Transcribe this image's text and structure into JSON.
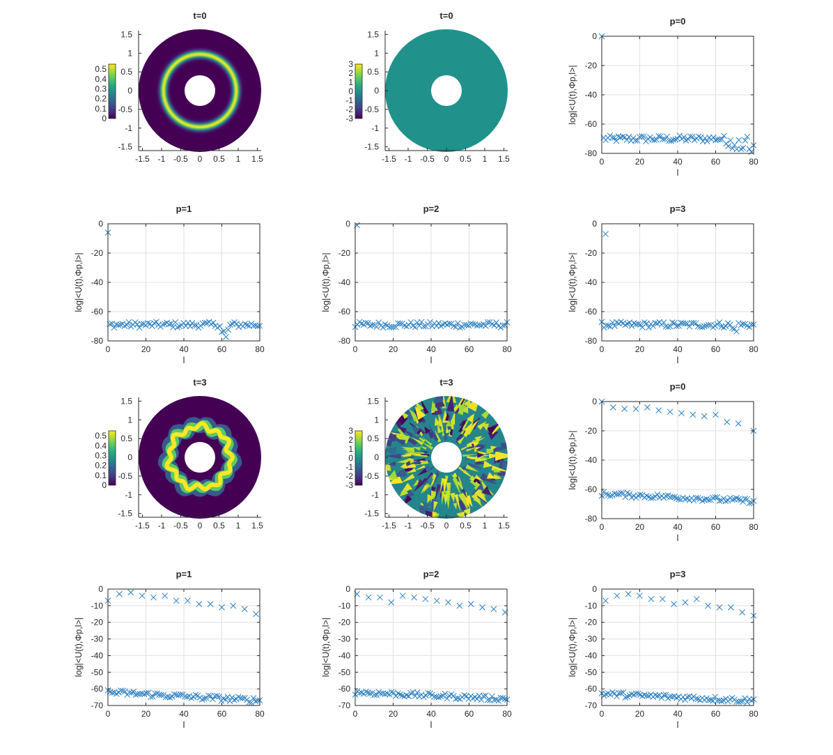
{
  "colors": {
    "marker": "#2a7fc1",
    "axis": "#262626",
    "grid": "#e0e0e0",
    "phase_flat": "#21918c",
    "viridis": [
      "#440154",
      "#472d7b",
      "#3b528b",
      "#2c728e",
      "#21918c",
      "#28ae80",
      "#5ec962",
      "#addc30",
      "#fde725"
    ]
  },
  "chart_data": [
    {
      "type": "heatmap",
      "title": "t=0",
      "xlim": [
        -1.6,
        1.6
      ],
      "ylim": [
        -1.6,
        1.6
      ],
      "xticks": [
        "-1.5",
        "-1",
        "-0.5",
        "0",
        "0.5",
        "1",
        "1.5"
      ],
      "yticks": [
        "1.5",
        "1",
        "0.5",
        "0",
        "-0.5",
        "-1",
        "-1.5"
      ],
      "colorbar": {
        "min": 0,
        "max": 0.55,
        "ticks": [
          "0.5",
          "0.4",
          "0.3",
          "0.2",
          "0.1",
          "0"
        ]
      },
      "annulus": {
        "inner_radius": 0.4,
        "outer_radius": 1.6,
        "ring_peak_radius": 0.95
      }
    },
    {
      "type": "heatmap",
      "title": "t=0",
      "xlim": [
        -1.6,
        1.6
      ],
      "ylim": [
        -1.6,
        1.6
      ],
      "xticks": [
        "-1.5",
        "-1",
        "-0.5",
        "0",
        "0.5",
        "1",
        "1.5"
      ],
      "yticks": [
        "1.5",
        "1",
        "0.5",
        "0",
        "-0.5",
        "-1",
        "-1.5"
      ],
      "colorbar": {
        "min": -3,
        "max": 3,
        "ticks": [
          "3",
          "2",
          "1",
          "0",
          "-1",
          "-2",
          "-3"
        ]
      },
      "annulus": {
        "inner_radius": 0.4,
        "outer_radius": 1.6
      }
    },
    {
      "type": "scatter",
      "title": "p=0",
      "xlabel": "l",
      "ylabel": "log|<U(t),Φp,l>|",
      "xlim": [
        0,
        80
      ],
      "ylim": [
        -80,
        0
      ],
      "xticks": [
        "0",
        "20",
        "40",
        "60",
        "80"
      ],
      "yticks": [
        "0",
        "-20",
        "-40",
        "-60",
        "-80"
      ],
      "points": [
        [
          0,
          0
        ]
      ],
      "noise_band": {
        "x_start": 1,
        "x_end": 80,
        "count": 72,
        "center": -70,
        "spread": 2.2,
        "tail_drop": [
          [
            66,
            -3
          ],
          [
            70,
            -5
          ],
          [
            74,
            -6
          ],
          [
            78,
            -7
          ],
          [
            80,
            -6
          ]
        ]
      }
    },
    {
      "type": "scatter",
      "title": "p=1",
      "xlabel": "l",
      "ylabel": "log|<U(t),Φp,l>|",
      "xlim": [
        0,
        80
      ],
      "ylim": [
        -80,
        0
      ],
      "xticks": [
        "0",
        "20",
        "40",
        "60",
        "80"
      ],
      "yticks": [
        "0",
        "-20",
        "-40",
        "-60",
        "-80"
      ],
      "points": [
        [
          0,
          -6
        ]
      ],
      "noise_band": {
        "x_start": 1,
        "x_end": 80,
        "count": 72,
        "center": -69,
        "spread": 2.0,
        "tail_drop": [
          [
            61,
            -5
          ],
          [
            63,
            -4
          ]
        ]
      }
    },
    {
      "type": "scatter",
      "title": "p=2",
      "xlabel": "l",
      "ylabel": "log|<U(t),Φp,l>|",
      "xlim": [
        0,
        80
      ],
      "ylim": [
        -80,
        0
      ],
      "xticks": [
        "0",
        "20",
        "40",
        "60",
        "80"
      ],
      "yticks": [
        "0",
        "-20",
        "-40",
        "-60",
        "-80"
      ],
      "points": [
        [
          1,
          -1
        ]
      ],
      "noise_band": {
        "x_start": 0,
        "x_end": 80,
        "count": 72,
        "center": -69,
        "spread": 2.0,
        "tail_drop": []
      }
    },
    {
      "type": "scatter",
      "title": "p=3",
      "xlabel": "l",
      "ylabel": "log|<U(t),Φp,l>|",
      "xlim": [
        0,
        80
      ],
      "ylim": [
        -80,
        0
      ],
      "xticks": [
        "0",
        "20",
        "40",
        "60",
        "80"
      ],
      "yticks": [
        "0",
        "-20",
        "-40",
        "-60",
        "-80"
      ],
      "points": [
        [
          2,
          -7
        ]
      ],
      "noise_band": {
        "x_start": 0,
        "x_end": 80,
        "count": 72,
        "center": -69,
        "spread": 2.0,
        "tail_drop": [
          [
            70,
            -3
          ]
        ]
      }
    },
    {
      "type": "heatmap",
      "title": "t=3",
      "xlim": [
        -1.6,
        1.6
      ],
      "ylim": [
        -1.6,
        1.6
      ],
      "xticks": [
        "-1.5",
        "-1",
        "-0.5",
        "0",
        "0.5",
        "1",
        "1.5"
      ],
      "yticks": [
        "1.5",
        "1",
        "0.5",
        "0",
        "-0.5",
        "-1",
        "-1.5"
      ],
      "colorbar": {
        "min": 0,
        "max": 0.55,
        "ticks": [
          "0.5",
          "0.4",
          "0.3",
          "0.2",
          "0.1",
          "0"
        ]
      },
      "annulus": {
        "inner_radius": 0.4,
        "outer_radius": 1.6,
        "ring_peak_radius": 0.8
      }
    },
    {
      "type": "heatmap",
      "title": "t=3",
      "xlim": [
        -1.6,
        1.6
      ],
      "ylim": [
        -1.6,
        1.6
      ],
      "xticks": [
        "-1.5",
        "-1",
        "-0.5",
        "0",
        "0.5",
        "1",
        "1.5"
      ],
      "yticks": [
        "1.5",
        "1",
        "0.5",
        "0",
        "-0.5",
        "-1",
        "-1.5"
      ],
      "colorbar": {
        "min": -3,
        "max": 3,
        "ticks": [
          "3",
          "2",
          "1",
          "0",
          "-1",
          "-2",
          "-3"
        ]
      },
      "annulus": {
        "inner_radius": 0.4,
        "outer_radius": 1.6
      }
    },
    {
      "type": "scatter",
      "title": "p=0",
      "xlabel": "l",
      "ylabel": "log|<U(t),Φp,l>|",
      "xlim": [
        0,
        80
      ],
      "ylim": [
        -80,
        0
      ],
      "xticks": [
        "0",
        "20",
        "40",
        "60",
        "80"
      ],
      "yticks": [
        "0",
        "-20",
        "-40",
        "-60",
        "-80"
      ],
      "points": [
        [
          0,
          0
        ],
        [
          6,
          -4
        ],
        [
          12,
          -5
        ],
        [
          18,
          -5
        ],
        [
          24,
          -4
        ],
        [
          30,
          -6
        ],
        [
          36,
          -7
        ],
        [
          42,
          -8
        ],
        [
          48,
          -9
        ],
        [
          54,
          -10
        ],
        [
          60,
          -9
        ],
        [
          66,
          -14
        ],
        [
          72,
          -15
        ],
        [
          80,
          -20
        ]
      ],
      "noise_band": {
        "x_start": 0,
        "x_end": 80,
        "count": 72,
        "center": -63,
        "spread": 1.6,
        "trend": -5
      }
    },
    {
      "type": "scatter",
      "title": "p=1",
      "xlabel": "l",
      "ylabel": "log|<U(t),Φp,l>|",
      "xlim": [
        0,
        80
      ],
      "ylim": [
        -70,
        0
      ],
      "xticks": [
        "0",
        "20",
        "40",
        "60",
        "80"
      ],
      "yticks": [
        "0",
        "-10",
        "-20",
        "-30",
        "-40",
        "-50",
        "-60",
        "-70"
      ],
      "points": [
        [
          0,
          -7
        ],
        [
          6,
          -3
        ],
        [
          12,
          -2
        ],
        [
          18,
          -4
        ],
        [
          24,
          -5
        ],
        [
          30,
          -4
        ],
        [
          36,
          -7
        ],
        [
          42,
          -7
        ],
        [
          48,
          -9
        ],
        [
          54,
          -9
        ],
        [
          60,
          -11
        ],
        [
          66,
          -10
        ],
        [
          72,
          -12
        ],
        [
          78,
          -15
        ]
      ],
      "noise_band": {
        "x_start": 0,
        "x_end": 80,
        "count": 72,
        "center": -62,
        "spread": 1.6,
        "trend": -5
      }
    },
    {
      "type": "scatter",
      "title": "p=2",
      "xlabel": "l",
      "ylabel": "log|<U(t),Φp,l>|",
      "xlim": [
        0,
        80
      ],
      "ylim": [
        -70,
        0
      ],
      "xticks": [
        "0",
        "20",
        "40",
        "60",
        "80"
      ],
      "yticks": [
        "0",
        "-10",
        "-20",
        "-30",
        "-40",
        "-50",
        "-60",
        "-70"
      ],
      "points": [
        [
          1,
          -3
        ],
        [
          7,
          -5
        ],
        [
          13,
          -5
        ],
        [
          19,
          -8
        ],
        [
          25,
          -4
        ],
        [
          31,
          -5
        ],
        [
          37,
          -6
        ],
        [
          43,
          -7
        ],
        [
          49,
          -8
        ],
        [
          55,
          -10
        ],
        [
          61,
          -9
        ],
        [
          67,
          -11
        ],
        [
          73,
          -12
        ],
        [
          79,
          -14
        ]
      ],
      "noise_band": {
        "x_start": 0,
        "x_end": 80,
        "count": 72,
        "center": -62,
        "spread": 1.5,
        "trend": -4
      }
    },
    {
      "type": "scatter",
      "title": "p=3",
      "xlabel": "l",
      "ylabel": "log|<U(t),Φp,l>|",
      "xlim": [
        0,
        80
      ],
      "ylim": [
        -70,
        0
      ],
      "xticks": [
        "0",
        "20",
        "40",
        "60",
        "80"
      ],
      "yticks": [
        "0",
        "-10",
        "-20",
        "-30",
        "-40",
        "-50",
        "-60",
        "-70"
      ],
      "points": [
        [
          2,
          -7
        ],
        [
          8,
          -4
        ],
        [
          14,
          -3
        ],
        [
          20,
          -4
        ],
        [
          26,
          -6
        ],
        [
          32,
          -6
        ],
        [
          38,
          -9
        ],
        [
          44,
          -8
        ],
        [
          50,
          -6
        ],
        [
          56,
          -10
        ],
        [
          62,
          -11
        ],
        [
          68,
          -11
        ],
        [
          74,
          -14
        ],
        [
          80,
          -16
        ]
      ],
      "noise_band": {
        "x_start": 0,
        "x_end": 80,
        "count": 72,
        "center": -63,
        "spread": 1.5,
        "trend": -4
      }
    }
  ]
}
